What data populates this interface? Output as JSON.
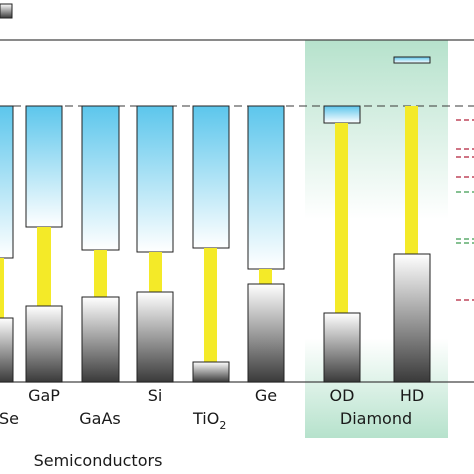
{
  "legend": {
    "valence_swatch": "valence-band-swatch"
  },
  "materials": [
    {
      "id": "znse",
      "label": "Se",
      "cb_top": 0.0,
      "vb_bottom": 0.0
    },
    {
      "id": "gap",
      "label": "GaP"
    },
    {
      "id": "gaas",
      "label": "GaAs"
    },
    {
      "id": "si",
      "label": "Si"
    },
    {
      "id": "tio2",
      "label": "TiO",
      "subscript": "2"
    },
    {
      "id": "ge",
      "label": "Ge"
    },
    {
      "id": "od",
      "label": "OD"
    },
    {
      "id": "hd",
      "label": "HD"
    }
  ],
  "groups": {
    "semiconductors": "Semiconductors",
    "diamond": "Diamond"
  },
  "colors": {
    "conduction_top": "#5cc6ec",
    "conduction_bottom": "#ffffff",
    "valence_top": "#ffffff",
    "valence_bottom": "#3a3a3a",
    "gap_bar": "#f4ea28",
    "diamond_panel": "#b6e2cc",
    "vacuum_line": "#3a3a3a",
    "red_dash": "#b2203a",
    "green_dash": "#3d9c50"
  }
}
